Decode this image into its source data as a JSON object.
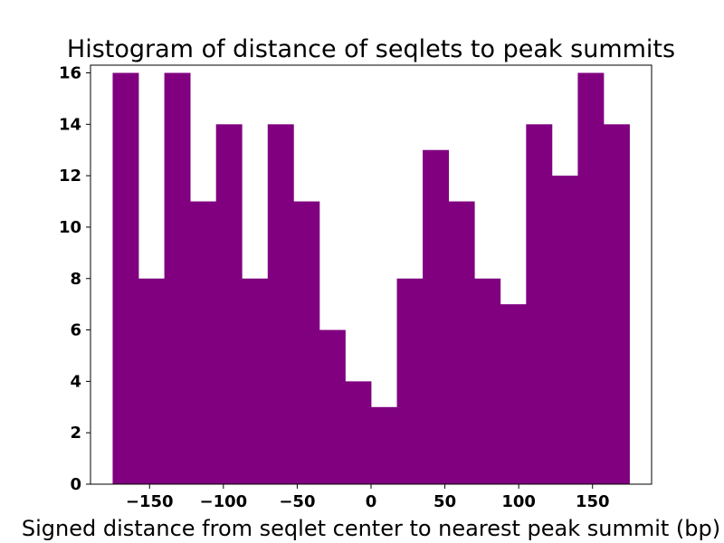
{
  "chart_data": {
    "type": "bar",
    "title": "Histogram of distance of seqlets to peak summits",
    "xlabel": "Signed distance from seqlet center to nearest peak summit (bp)",
    "ylabel": "",
    "bin_edges": [
      -175,
      -157.5,
      -140,
      -122.5,
      -105,
      -87.5,
      -70,
      -52.5,
      -35,
      -17.5,
      0,
      17.5,
      35,
      52.5,
      70,
      87.5,
      105,
      122.5,
      140,
      157.5,
      175
    ],
    "values": [
      16,
      8,
      16,
      11,
      14,
      8,
      14,
      11,
      6,
      4,
      3,
      8,
      13,
      11,
      8,
      7,
      14,
      12,
      16,
      14
    ],
    "xlim": [
      -190,
      190
    ],
    "ylim": [
      0,
      16.3
    ],
    "xticks": [
      -150,
      -100,
      -50,
      0,
      50,
      100,
      150
    ],
    "xtick_labels": [
      "−150",
      "−100",
      "−50",
      "0",
      "50",
      "100",
      "150"
    ],
    "yticks": [
      0,
      2,
      4,
      6,
      8,
      10,
      12,
      14,
      16
    ],
    "ytick_labels": [
      "0",
      "2",
      "4",
      "6",
      "8",
      "10",
      "12",
      "14",
      "16"
    ],
    "bar_color": "#800080",
    "grid": false
  }
}
